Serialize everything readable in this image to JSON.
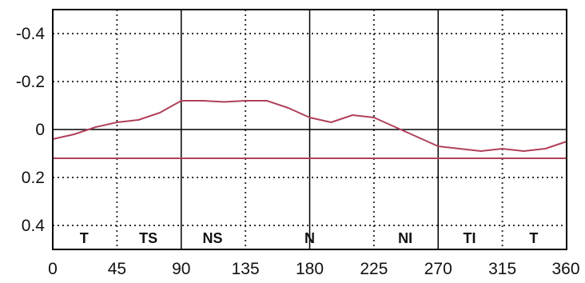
{
  "chart_data": {
    "type": "line",
    "title": "",
    "xlabel": "",
    "ylabel": "",
    "xlim": [
      0,
      360
    ],
    "ylim": [
      -0.5,
      0.5
    ],
    "y_inverted": true,
    "grid": "dotted",
    "x_ticks": [
      {
        "value": 0,
        "label": "0"
      },
      {
        "value": 45,
        "label": "45"
      },
      {
        "value": 90,
        "label": "90"
      },
      {
        "value": 135,
        "label": "135"
      },
      {
        "value": 180,
        "label": "180"
      },
      {
        "value": 225,
        "label": "225"
      },
      {
        "value": 270,
        "label": "270"
      },
      {
        "value": 315,
        "label": "315"
      },
      {
        "value": 360,
        "label": "360"
      }
    ],
    "y_ticks": [
      {
        "value": -0.4,
        "label": "-0.4"
      },
      {
        "value": -0.2,
        "label": "-0.2"
      },
      {
        "value": 0,
        "label": "0"
      },
      {
        "value": 0.2,
        "label": "0.2"
      },
      {
        "value": 0.4,
        "label": "0.4"
      }
    ],
    "sector_boundaries": [
      90,
      180,
      270
    ],
    "sector_labels": [
      {
        "x": 22,
        "label": "T"
      },
      {
        "x": 67,
        "label": "TS"
      },
      {
        "x": 112,
        "label": "NS"
      },
      {
        "x": 180,
        "label": "N"
      },
      {
        "x": 247,
        "label": "NI"
      },
      {
        "x": 292,
        "label": "TI"
      },
      {
        "x": 337,
        "label": "T"
      }
    ],
    "reference_line": {
      "y": 0
    },
    "series": [
      {
        "color": "#b0405a",
        "x": [
          0,
          15,
          30,
          45,
          60,
          75,
          90,
          105,
          120,
          135,
          150,
          165,
          180,
          195,
          210,
          225,
          240,
          255,
          270,
          285,
          300,
          315,
          330,
          345,
          360
        ],
        "y": [
          0.04,
          0.02,
          -0.01,
          -0.03,
          -0.04,
          -0.07,
          -0.12,
          -0.12,
          -0.115,
          -0.12,
          -0.12,
          -0.09,
          -0.05,
          -0.03,
          -0.06,
          -0.05,
          -0.01,
          0.03,
          0.07,
          0.08,
          0.09,
          0.08,
          0.09,
          0.08,
          0.05
        ]
      },
      {
        "color": "#b0405a",
        "x": [
          0,
          360
        ],
        "y": [
          0.12,
          0.12
        ]
      }
    ],
    "colors": {
      "axis": "#000000",
      "grid": "#333333",
      "series": "#b0405a"
    }
  }
}
